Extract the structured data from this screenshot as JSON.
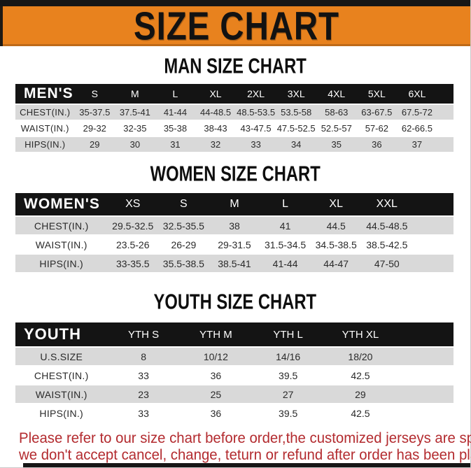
{
  "banner": {
    "title": "SIZE CHART",
    "background_color": "#e8821e",
    "bar_color": "#161616"
  },
  "sections": [
    {
      "heading": "MAN SIZE CHART",
      "table": {
        "corner_label": "MEN'S",
        "columns": [
          "S",
          "M",
          "L",
          "XL",
          "2XL",
          "3XL",
          "4XL",
          "5XL",
          "6XL"
        ],
        "rows": [
          {
            "label": "CHEST(IN.)",
            "values": [
              "35-37.5",
              "37.5-41",
              "41-44",
              "44-48.5",
              "48.5-53.5",
              "53.5-58",
              "58-63",
              "63-67.5",
              "67.5-72"
            ]
          },
          {
            "label": "WAIST(IN.)",
            "values": [
              "29-32",
              "32-35",
              "35-38",
              "38-43",
              "43-47.5",
              "47.5-52.5",
              "52.5-57",
              "57-62",
              "62-66.5"
            ]
          },
          {
            "label": "HIPS(IN.)",
            "values": [
              "29",
              "30",
              "31",
              "32",
              "33",
              "34",
              "35",
              "36",
              "37"
            ]
          }
        ]
      }
    },
    {
      "heading": "WOMEN SIZE CHART",
      "table": {
        "corner_label": "WOMEN'S",
        "columns": [
          "XS",
          "S",
          "M",
          "L",
          "XL",
          "XXL"
        ],
        "rows": [
          {
            "label": "CHEST(IN.)",
            "values": [
              "29.5-32.5",
              "32.5-35.5",
              "38",
              "41",
              "44.5",
              "44.5-48.5"
            ]
          },
          {
            "label": "WAIST(IN.)",
            "values": [
              "23.5-26",
              "26-29",
              "29-31.5",
              "31.5-34.5",
              "34.5-38.5",
              "38.5-42.5"
            ]
          },
          {
            "label": "HIPS(IN.)",
            "values": [
              "33-35.5",
              "35.5-38.5",
              "38.5-41",
              "41-44",
              "44-47",
              "47-50"
            ]
          }
        ]
      }
    },
    {
      "heading": "YOUTH SIZE CHART",
      "table": {
        "corner_label": "YOUTH",
        "columns": [
          "YTH S",
          "YTH M",
          "YTH L",
          "YTH XL"
        ],
        "rows": [
          {
            "label": "U.S.SIZE",
            "values": [
              "8",
              "10/12",
              "14/16",
              "18/20"
            ]
          },
          {
            "label": "CHEST(IN.)",
            "values": [
              "33",
              "36",
              "39.5",
              "42.5"
            ]
          },
          {
            "label": "WAIST(IN.)",
            "values": [
              "23",
              "25",
              "27",
              "29"
            ]
          },
          {
            "label": "HIPS(IN.)",
            "values": [
              "33",
              "36",
              "39.5",
              "42.5"
            ]
          }
        ]
      }
    }
  ],
  "footer": {
    "line1": "Please refer to our size chart before order,the customized jerseys are special products,",
    "line2": "we don't accept cancel, change, teturn or refund after order has been placed!",
    "text_color": "#b32b2f",
    "gray_row_color": "#d9d9d9",
    "header_row_color": "#141414"
  }
}
